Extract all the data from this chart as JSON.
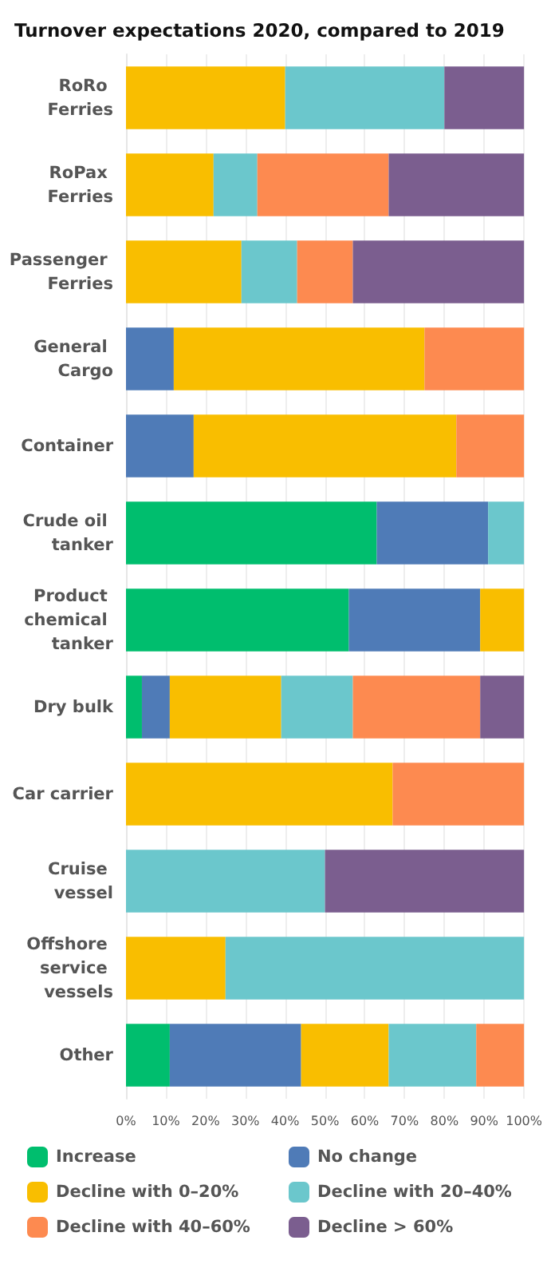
{
  "chart_data": {
    "type": "bar",
    "title": "Turnover expectations 2020, compared to 2019",
    "orientation": "horizontal",
    "stacked": true,
    "grid": "x",
    "legend": "bottom",
    "categories": [
      "RoRo Ferries",
      "RoPax Ferries",
      "Passenger Ferries",
      "General Cargo",
      "Container",
      "Crude oil tanker",
      "Product chemical tanker",
      "Dry bulk",
      "Car carrier",
      "Cruise vessel",
      "Offshore service vessels",
      "Other"
    ],
    "xlim": [
      0,
      100
    ],
    "xticks": [
      {
        "value": 0,
        "label": "0%"
      },
      {
        "value": 10,
        "label": "10%"
      },
      {
        "value": 20,
        "label": "20%"
      },
      {
        "value": 30,
        "label": "30%"
      },
      {
        "value": 40,
        "label": "40%"
      },
      {
        "value": 50,
        "label": "50%"
      },
      {
        "value": 60,
        "label": "60%"
      },
      {
        "value": 70,
        "label": "70%"
      },
      {
        "value": 80,
        "label": "80%"
      },
      {
        "value": 90,
        "label": "90%"
      },
      {
        "value": 100,
        "label": "100%"
      }
    ],
    "series": [
      {
        "name": "Increase",
        "color": "#00be6e",
        "values": [
          null,
          null,
          null,
          null,
          null,
          63,
          56,
          4,
          null,
          null,
          null,
          11
        ]
      },
      {
        "name": "No change",
        "color": "#4f7bb7",
        "values": [
          null,
          null,
          null,
          12,
          17,
          28,
          33,
          7,
          null,
          null,
          null,
          33
        ]
      },
      {
        "name": "Decline with 0–20%",
        "color": "#f9be00",
        "values": [
          40,
          22,
          29,
          63,
          66,
          null,
          11,
          28,
          67,
          null,
          25,
          22
        ]
      },
      {
        "name": "Decline with 20–40%",
        "color": "#6bc7cc",
        "values": [
          40,
          11,
          14,
          null,
          null,
          9,
          null,
          18,
          null,
          50,
          75,
          22
        ]
      },
      {
        "name": "Decline with 40–60%",
        "color": "#fd8a50",
        "values": [
          null,
          33,
          14,
          25,
          17,
          null,
          null,
          32,
          33,
          null,
          null,
          12
        ]
      },
      {
        "name": "Decline > 60%",
        "color": "#7b5e8f",
        "values": [
          20,
          34,
          43,
          null,
          null,
          null,
          null,
          11,
          null,
          50,
          null,
          null
        ]
      }
    ]
  }
}
